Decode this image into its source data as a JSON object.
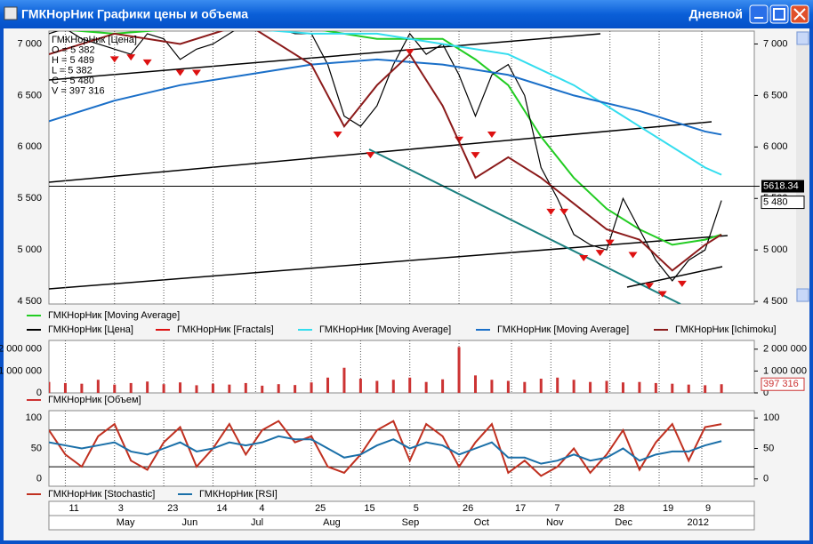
{
  "window": {
    "title": "ГМКНорНик Графики цены и объема",
    "period": "Дневной"
  },
  "dates": {
    "days": [
      {
        "value": 5,
        "label": "11"
      },
      {
        "value": 20,
        "label": "3"
      },
      {
        "value": 35,
        "label": "23"
      },
      {
        "value": 50,
        "label": "14"
      },
      {
        "value": 63,
        "label": "4"
      },
      {
        "value": 80,
        "label": "25"
      },
      {
        "value": 95,
        "label": "15"
      },
      {
        "value": 110,
        "label": "5"
      },
      {
        "value": 125,
        "label": "26"
      },
      {
        "value": 141,
        "label": "17"
      },
      {
        "value": 153,
        "label": "7"
      },
      {
        "value": 171,
        "label": "28"
      },
      {
        "value": 186,
        "label": "19"
      },
      {
        "value": 199,
        "label": "9"
      }
    ],
    "months": [
      {
        "value": 20,
        "label": "May"
      },
      {
        "value": 40,
        "label": "Jun"
      },
      {
        "value": 61,
        "label": "Jul"
      },
      {
        "value": 83,
        "label": "Aug"
      },
      {
        "value": 107,
        "label": "Sep"
      },
      {
        "value": 129,
        "label": "Oct"
      },
      {
        "value": 151,
        "label": "Nov"
      },
      {
        "value": 172,
        "label": "Dec"
      },
      {
        "value": 194,
        "label": "2012"
      }
    ]
  },
  "chart_data": [
    {
      "type": "line",
      "xlim": [
        0,
        215
      ],
      "ylim": [
        4475,
        7125
      ],
      "yticks": [
        {
          "value": 4500,
          "label": "4 500"
        },
        {
          "value": 5000,
          "label": "5 000"
        },
        {
          "value": 5500,
          "label": "5 500"
        },
        {
          "value": 6000,
          "label": "6 000"
        },
        {
          "value": 6500,
          "label": "6 500"
        },
        {
          "value": 7000,
          "label": "7 000"
        }
      ],
      "info": [
        "ГМКНорНик [Цена]",
        "O = 5 382",
        "H = 5 489",
        "L = 5 382",
        "C = 5 480",
        "V = 397 316"
      ],
      "cursor": 5618.34,
      "last": {
        "value": 5480,
        "label": "5 480"
      },
      "series": [
        {
          "name": "ГМКНорНик [Moving Average]",
          "color": "#22cc22",
          "x": [
            0,
            20,
            40,
            60,
            80,
            100,
            120,
            130,
            140,
            150,
            160,
            170,
            180,
            190,
            200,
            205
          ],
          "values": [
            7150,
            7100,
            7150,
            7250,
            7150,
            7050,
            7050,
            6850,
            6600,
            6100,
            5700,
            5400,
            5200,
            5050,
            5100,
            5150
          ]
        },
        {
          "name": "ГМКНорНик [Цена]",
          "color": "#000000",
          "x": [
            0,
            5,
            10,
            15,
            20,
            25,
            30,
            35,
            40,
            45,
            50,
            55,
            60,
            65,
            70,
            75,
            80,
            85,
            90,
            95,
            100,
            105,
            110,
            115,
            120,
            125,
            130,
            135,
            140,
            145,
            150,
            155,
            160,
            165,
            170,
            175,
            180,
            185,
            190,
            195,
            200,
            205
          ],
          "values": [
            7100,
            7150,
            7050,
            7000,
            6950,
            6900,
            7100,
            7050,
            6850,
            6950,
            7000,
            7100,
            7200,
            7200,
            7150,
            7100,
            7100,
            6800,
            6300,
            6200,
            6400,
            6800,
            7100,
            6900,
            7000,
            6700,
            6300,
            6700,
            6800,
            6500,
            5800,
            5500,
            5150,
            5050,
            5000,
            5500,
            5200,
            4900,
            4700,
            4900,
            5000,
            5480
          ]
        },
        {
          "name": "ГМКНорНик [Fractals]",
          "color": "#dd1111",
          "marker": "arrow",
          "x": [
            20,
            25,
            30,
            40,
            45,
            88,
            98,
            110,
            125,
            130,
            135,
            153,
            157,
            163,
            168,
            171,
            178,
            183,
            187,
            193
          ],
          "values": [
            6880,
            6900,
            6850,
            6750,
            6750,
            6150,
            5950,
            6950,
            6100,
            5950,
            6150,
            5400,
            5400,
            4950,
            5000,
            5100,
            4980,
            4680,
            4600,
            4700
          ]
        },
        {
          "name": "ГМКНорНик [Moving Average]",
          "color": "#33ddee",
          "x": [
            0,
            20,
            40,
            60,
            80,
            100,
            120,
            140,
            160,
            180,
            200,
            205
          ],
          "values": [
            7150,
            7150,
            7150,
            7150,
            7100,
            7100,
            7000,
            6900,
            6600,
            6200,
            5800,
            5730
          ]
        },
        {
          "name": "ГМКНорНик [Moving Average]",
          "color": "#1a6fc8",
          "x": [
            0,
            20,
            40,
            60,
            80,
            100,
            120,
            140,
            160,
            180,
            200,
            205
          ],
          "values": [
            6250,
            6450,
            6600,
            6700,
            6800,
            6850,
            6800,
            6700,
            6500,
            6350,
            6150,
            6120
          ]
        },
        {
          "name": "ГМКНорНик [Ichimoku]",
          "color": "#8b1a1a",
          "x": [
            0,
            20,
            40,
            60,
            80,
            90,
            100,
            110,
            120,
            130,
            140,
            150,
            160,
            170,
            180,
            190,
            200,
            205
          ],
          "values": [
            6900,
            7100,
            7000,
            7200,
            6800,
            6200,
            6600,
            6900,
            6400,
            5700,
            5900,
            5700,
            5450,
            5200,
            5100,
            4800,
            5050,
            5150
          ]
        }
      ]
    },
    {
      "type": "bar",
      "xlim": [
        0,
        215
      ],
      "ylim": [
        0,
        2400000
      ],
      "yticks": [
        0,
        {
          "value": 1000000,
          "label": "1 000 000"
        },
        {
          "value": 2000000,
          "label": "2 000 000"
        }
      ],
      "last": {
        "value": 397316,
        "label": "397 316"
      },
      "series": [
        {
          "name": "ГМКНорНик [Объем]",
          "color": "#cc3333",
          "x": [
            0,
            5,
            10,
            15,
            20,
            25,
            30,
            35,
            40,
            45,
            50,
            55,
            60,
            65,
            70,
            75,
            80,
            85,
            90,
            95,
            100,
            105,
            110,
            115,
            120,
            125,
            130,
            135,
            140,
            145,
            150,
            155,
            160,
            165,
            170,
            175,
            180,
            185,
            190,
            195,
            200,
            205
          ],
          "values": [
            500000,
            450000,
            420000,
            600000,
            380000,
            450000,
            520000,
            400000,
            480000,
            350000,
            420000,
            380000,
            450000,
            330000,
            400000,
            360000,
            480000,
            700000,
            1150000,
            650000,
            550000,
            600000,
            700000,
            500000,
            620000,
            2100000,
            800000,
            600000,
            550000,
            500000,
            650000,
            700000,
            600000,
            500000,
            550000,
            480000,
            500000,
            450000,
            420000,
            380000,
            350000,
            397316
          ]
        }
      ]
    },
    {
      "type": "line",
      "xlim": [
        0,
        215
      ],
      "ylim": [
        -12,
        112
      ],
      "yticks": [
        0,
        50,
        100
      ],
      "levels": [
        20,
        80
      ],
      "series": [
        {
          "name": "ГМКНорНик [Stochastic]",
          "color": "#c03020",
          "x": [
            0,
            5,
            10,
            15,
            20,
            25,
            30,
            35,
            40,
            45,
            50,
            55,
            60,
            65,
            70,
            75,
            80,
            85,
            90,
            95,
            100,
            105,
            110,
            115,
            120,
            125,
            130,
            135,
            140,
            145,
            150,
            155,
            160,
            165,
            170,
            175,
            180,
            185,
            190,
            195,
            200,
            205
          ],
          "values": [
            80,
            40,
            20,
            70,
            90,
            30,
            15,
            60,
            85,
            20,
            50,
            90,
            40,
            80,
            95,
            60,
            70,
            20,
            10,
            40,
            80,
            95,
            30,
            90,
            70,
            20,
            60,
            90,
            10,
            30,
            5,
            20,
            50,
            10,
            40,
            80,
            15,
            60,
            90,
            30,
            85,
            90
          ]
        },
        {
          "name": "ГМКНорНик [RSI]",
          "color": "#1a6fa8",
          "x": [
            0,
            5,
            10,
            15,
            20,
            25,
            30,
            35,
            40,
            45,
            50,
            55,
            60,
            65,
            70,
            75,
            80,
            85,
            90,
            95,
            100,
            105,
            110,
            115,
            120,
            125,
            130,
            135,
            140,
            145,
            150,
            155,
            160,
            165,
            170,
            175,
            180,
            185,
            190,
            195,
            200,
            205
          ],
          "values": [
            60,
            55,
            50,
            55,
            60,
            45,
            40,
            50,
            60,
            45,
            50,
            60,
            55,
            60,
            70,
            65,
            65,
            50,
            35,
            40,
            55,
            65,
            50,
            60,
            55,
            40,
            50,
            60,
            35,
            35,
            25,
            30,
            40,
            30,
            35,
            50,
            30,
            40,
            45,
            45,
            55,
            62
          ]
        }
      ]
    }
  ]
}
